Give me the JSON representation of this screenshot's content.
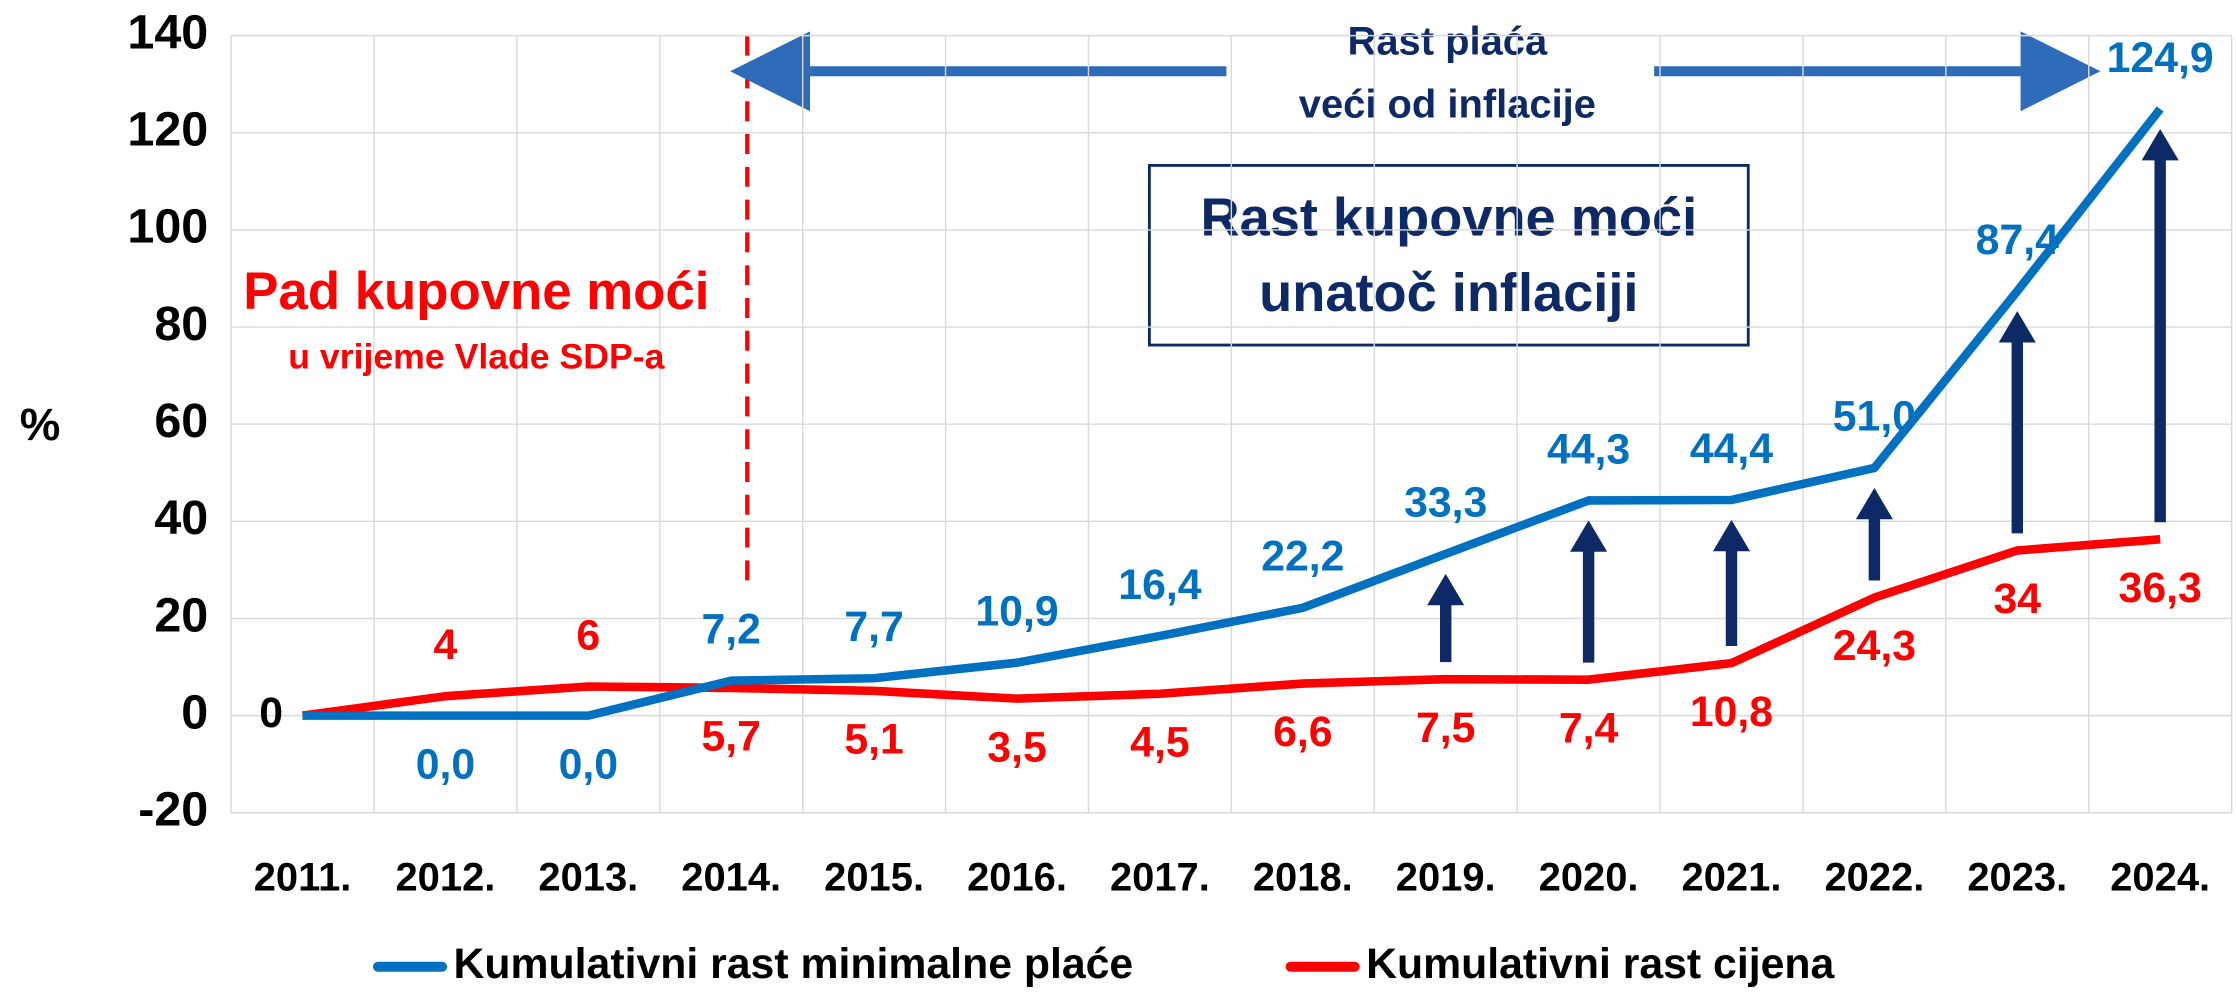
{
  "chart_data": {
    "type": "line",
    "categories": [
      "2011.",
      "2012.",
      "2013.",
      "2014.",
      "2015.",
      "2016.",
      "2017.",
      "2018.",
      "2019.",
      "2020.",
      "2021.",
      "2022.",
      "2023.",
      "2024."
    ],
    "series": [
      {
        "name": "Kumulativni rast minimalne plaće",
        "color": "#0070c0",
        "values": [
          0,
          0,
          0,
          7.2,
          7.7,
          10.9,
          16.4,
          22.2,
          33.3,
          44.3,
          44.4,
          51.0,
          87.4,
          124.9
        ],
        "value_labels": [
          null,
          "0,0",
          "0,0",
          "7,2",
          "7,7",
          "10,9",
          "16,4",
          "22,2",
          "33,3",
          "44,3",
          "44,4",
          "51,0",
          "87,4",
          "124,9"
        ]
      },
      {
        "name": "Kumulativni rast cijena",
        "color": "#ff0000",
        "values": [
          0,
          4,
          6,
          5.7,
          5.1,
          3.5,
          4.5,
          6.6,
          7.5,
          7.4,
          10.8,
          24.3,
          34,
          36.3
        ],
        "value_labels": [
          "0",
          "4",
          "6",
          "5,7",
          "5,1",
          "3,5",
          "4,5",
          "6,6",
          "7,5",
          "7,4",
          "10,8",
          "24,3",
          "34",
          "36,3"
        ]
      }
    ],
    "y_label": "%",
    "ylim": [
      -20,
      140
    ],
    "yticks": [
      -20,
      0,
      20,
      40,
      60,
      80,
      100,
      120,
      140
    ],
    "grid": true,
    "legend": "bottom",
    "annotations": {
      "top_arrow": [
        "Rast plaća",
        "veći od inflacije"
      ],
      "box": [
        "Rast kupovne moći",
        "unatoč inflaciji"
      ],
      "left": [
        "Pad kupovne moći",
        "u vrijeme Vlade SDP-a"
      ]
    }
  }
}
